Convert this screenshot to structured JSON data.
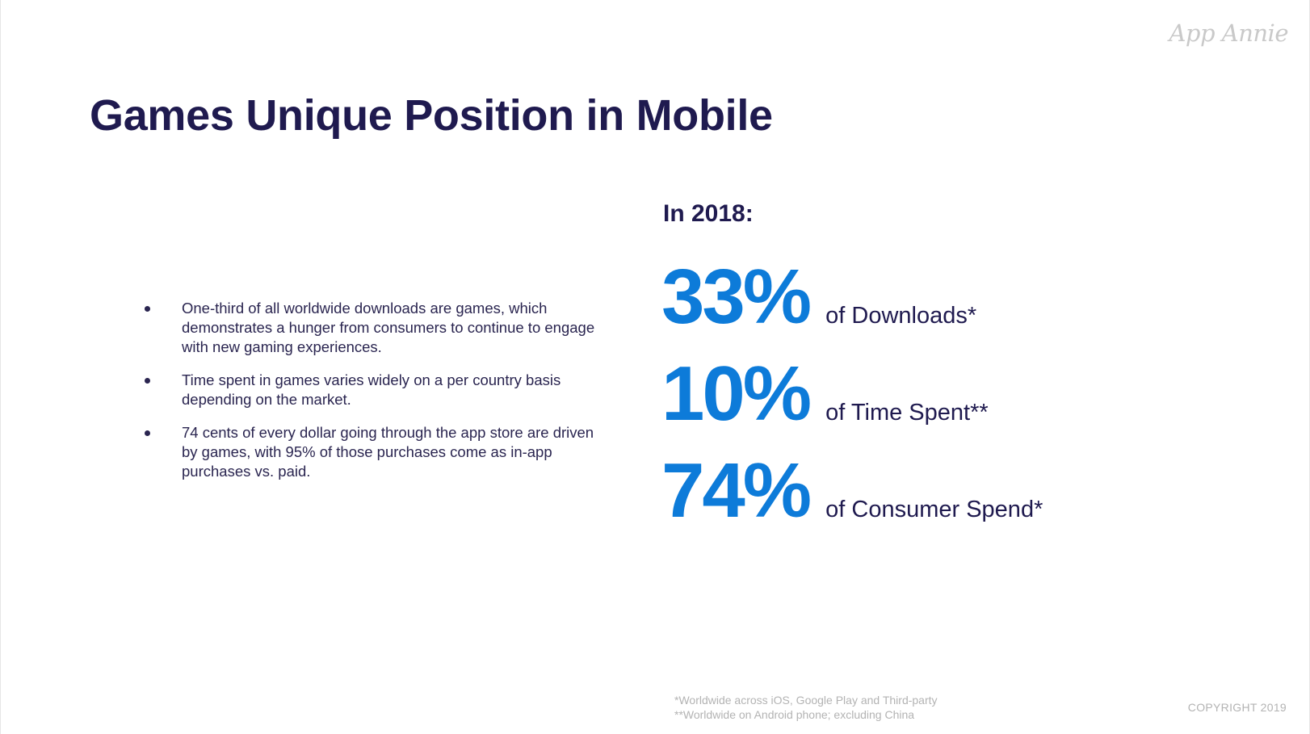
{
  "brand": {
    "logo_text": "App Annie"
  },
  "title": "Games Unique Position in Mobile",
  "bullets": [
    "One-third of all worldwide downloads are games, which demonstrates a hunger from consumers to continue to engage with new gaming experiences.",
    "Time spent in games varies widely on a per country basis depending on the market.",
    "74 cents of every dollar going through the app store are driven by games, with 95% of those purchases come as in-app purchases vs. paid."
  ],
  "stats": {
    "heading": "In 2018:",
    "items": [
      {
        "value": "33%",
        "label": "of Downloads*"
      },
      {
        "value": "10%",
        "label": "of Time Spent**"
      },
      {
        "value": "74%",
        "label": "of Consumer Spend*"
      }
    ]
  },
  "footnotes": [
    "*Worldwide across iOS, Google Play and Third-party",
    "**Worldwide on Android phone; excluding China"
  ],
  "copyright": "COPYRIGHT 2019",
  "colors": {
    "title": "#1f1a4f",
    "accent_blue": "#0d7bd9",
    "muted_gray": "#b3b3b3"
  }
}
